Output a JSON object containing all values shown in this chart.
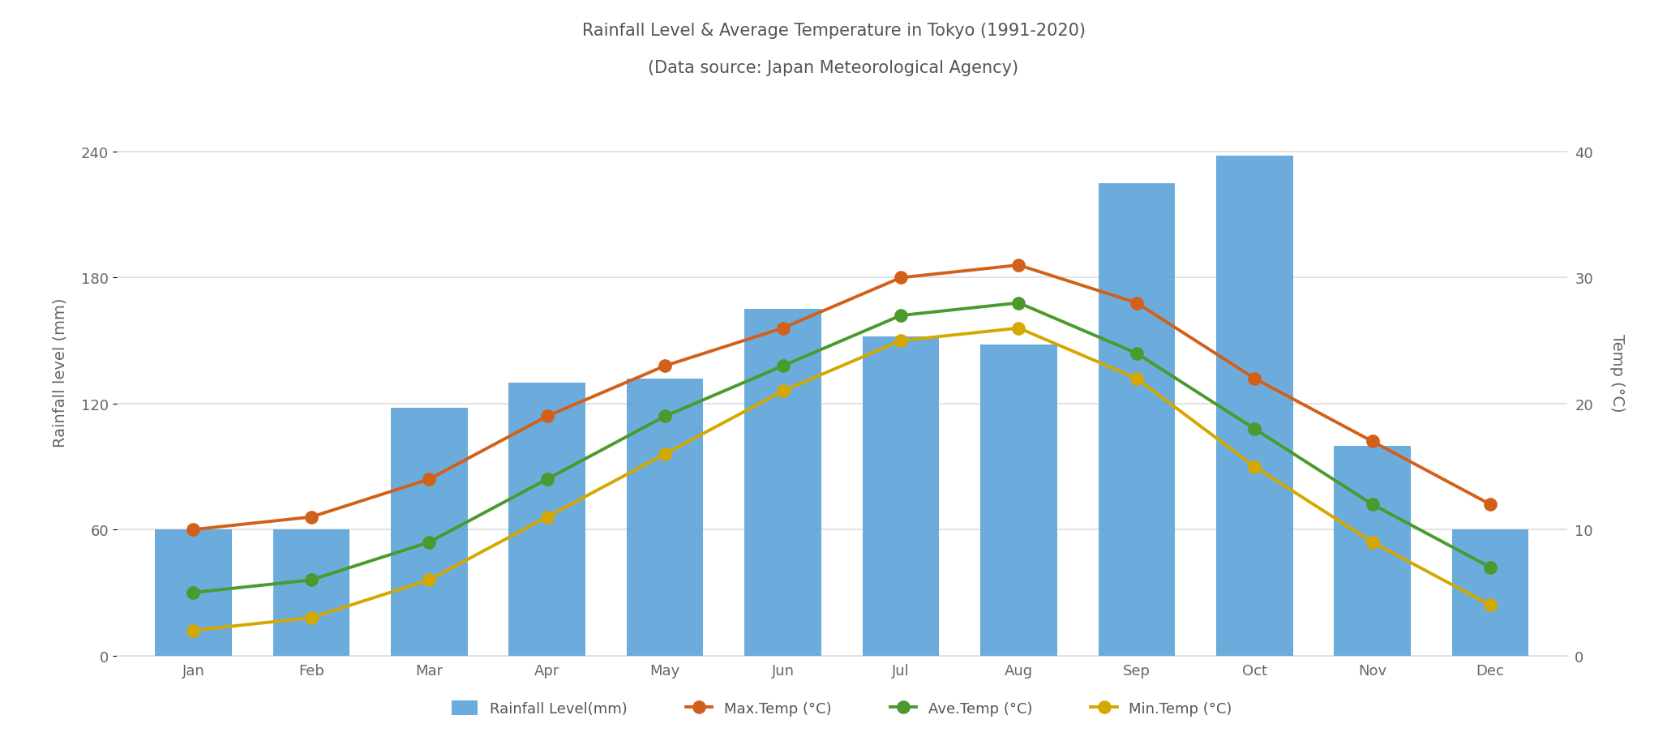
{
  "title_line1": "Rainfall Level & Average Temperature in Tokyo (1991-2020)",
  "title_line2": "(Data source: Japan Meteorological Agency)",
  "months": [
    "Jan",
    "Feb",
    "Mar",
    "Apr",
    "May",
    "Jun",
    "Jul",
    "Aug",
    "Sep",
    "Oct",
    "Nov",
    "Dec"
  ],
  "rainfall_mm": [
    60,
    60,
    118,
    130,
    132,
    165,
    152,
    148,
    225,
    238,
    100,
    60
  ],
  "max_temp": [
    10,
    11,
    14,
    19,
    23,
    26,
    30,
    31,
    28,
    22,
    17,
    12
  ],
  "ave_temp": [
    5,
    6,
    9,
    14,
    19,
    23,
    27,
    28,
    24,
    18,
    12,
    7
  ],
  "min_temp": [
    2,
    3,
    6,
    11,
    16,
    21,
    25,
    26,
    22,
    15,
    9,
    4
  ],
  "bar_color": "#5ba3d9",
  "max_temp_color": "#d2601a",
  "ave_temp_color": "#4a9a2e",
  "min_temp_color": "#d4a800",
  "ylabel_left": "Rainfall level (mm)",
  "ylabel_right": "Temp (°C)",
  "ylim_left": [
    0,
    270
  ],
  "ylim_right": [
    0,
    45
  ],
  "yticks_left": [
    0,
    60,
    120,
    180,
    240
  ],
  "yticks_right": [
    0,
    10,
    20,
    30,
    40
  ],
  "background_color": "#ffffff",
  "grid_color": "#dddddd",
  "tick_color": "#666666",
  "legend_labels": [
    "Rainfall Level(mm)",
    "Max.Temp (°C)",
    "Ave.Temp (°C)",
    "Min.Temp (°C)"
  ]
}
